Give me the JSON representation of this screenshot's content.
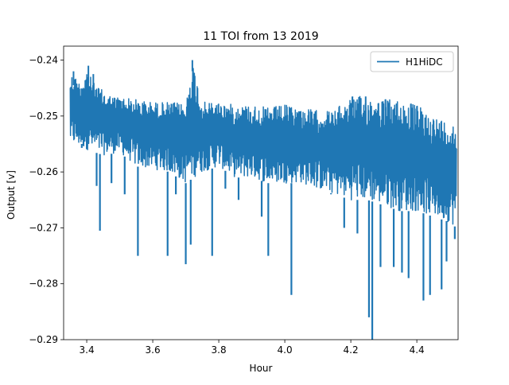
{
  "chart_data": {
    "type": "line",
    "title": "11 TOI from 13 2019",
    "xlabel": "Hour",
    "ylabel": "Output [v]",
    "xlim": [
      3.33,
      4.525
    ],
    "ylim": [
      -0.29,
      -0.2375
    ],
    "xticks": [
      3.4,
      3.6,
      3.8,
      4.0,
      4.2,
      4.4
    ],
    "xtick_labels": [
      "3.4",
      "3.6",
      "3.8",
      "4.0",
      "4.2",
      "4.4"
    ],
    "yticks": [
      -0.24,
      -0.25,
      -0.26,
      -0.27,
      -0.28,
      -0.29
    ],
    "ytick_labels": [
      "−0.24",
      "−0.25",
      "−0.26",
      "−0.27",
      "−0.28",
      "−0.29"
    ],
    "grid": false,
    "legend_position": "top-right",
    "series": [
      {
        "name": "H1HiDC",
        "color": "#1f77b4",
        "x_range": [
          3.35,
          4.52
        ],
        "upper_envelope": {
          "x": [
            3.35,
            3.36,
            3.38,
            3.4,
            3.42,
            3.45,
            3.48,
            3.5,
            3.55,
            3.6,
            3.65,
            3.7,
            3.72,
            3.75,
            3.8,
            3.85,
            3.9,
            3.95,
            4.0,
            4.05,
            4.1,
            4.15,
            4.2,
            4.25,
            4.3,
            4.35,
            4.4,
            4.45,
            4.5,
            4.52
          ],
          "y": [
            -0.2425,
            -0.2425,
            -0.244,
            -0.2415,
            -0.244,
            -0.2455,
            -0.2465,
            -0.2465,
            -0.247,
            -0.2475,
            -0.2475,
            -0.2478,
            -0.24,
            -0.2475,
            -0.2475,
            -0.248,
            -0.248,
            -0.2485,
            -0.248,
            -0.2485,
            -0.249,
            -0.249,
            -0.2465,
            -0.2465,
            -0.247,
            -0.247,
            -0.248,
            -0.25,
            -0.251,
            -0.2515
          ]
        },
        "lower_envelope": {
          "x": [
            3.35,
            3.4,
            3.45,
            3.5,
            3.55,
            3.6,
            3.65,
            3.7,
            3.75,
            3.8,
            3.85,
            3.9,
            3.95,
            4.0,
            4.05,
            4.1,
            4.15,
            4.2,
            4.25,
            4.3,
            4.35,
            4.4,
            4.45,
            4.5,
            4.52
          ],
          "y": [
            -0.255,
            -0.256,
            -0.257,
            -0.2565,
            -0.259,
            -0.2595,
            -0.26,
            -0.262,
            -0.26,
            -0.259,
            -0.261,
            -0.261,
            -0.262,
            -0.262,
            -0.262,
            -0.263,
            -0.264,
            -0.265,
            -0.265,
            -0.266,
            -0.267,
            -0.267,
            -0.268,
            -0.269,
            -0.27
          ]
        },
        "spikes": [
          {
            "x": 3.385,
            "y": -0.255
          },
          {
            "x": 3.43,
            "y": -0.2625
          },
          {
            "x": 3.44,
            "y": -0.2705
          },
          {
            "x": 3.475,
            "y": -0.262
          },
          {
            "x": 3.515,
            "y": -0.264
          },
          {
            "x": 3.555,
            "y": -0.275
          },
          {
            "x": 3.645,
            "y": -0.275
          },
          {
            "x": 3.67,
            "y": -0.264
          },
          {
            "x": 3.7,
            "y": -0.2765
          },
          {
            "x": 3.715,
            "y": -0.273
          },
          {
            "x": 3.78,
            "y": -0.275
          },
          {
            "x": 3.82,
            "y": -0.263
          },
          {
            "x": 3.86,
            "y": -0.265
          },
          {
            "x": 3.93,
            "y": -0.268
          },
          {
            "x": 3.95,
            "y": -0.275
          },
          {
            "x": 4.02,
            "y": -0.282
          },
          {
            "x": 4.14,
            "y": -0.264
          },
          {
            "x": 4.18,
            "y": -0.27
          },
          {
            "x": 4.22,
            "y": -0.271
          },
          {
            "x": 4.255,
            "y": -0.286
          },
          {
            "x": 4.265,
            "y": -0.29
          },
          {
            "x": 4.29,
            "y": -0.277
          },
          {
            "x": 4.33,
            "y": -0.277
          },
          {
            "x": 4.355,
            "y": -0.278
          },
          {
            "x": 4.375,
            "y": -0.279
          },
          {
            "x": 4.42,
            "y": -0.283
          },
          {
            "x": 4.44,
            "y": -0.282
          },
          {
            "x": 4.475,
            "y": -0.281
          },
          {
            "x": 4.49,
            "y": -0.276
          },
          {
            "x": 4.515,
            "y": -0.272
          }
        ],
        "peaks": [
          {
            "x": 3.36,
            "y": -0.242
          },
          {
            "x": 3.405,
            "y": -0.241
          },
          {
            "x": 3.42,
            "y": -0.2425
          },
          {
            "x": 3.72,
            "y": -0.24
          },
          {
            "x": 4.205,
            "y": -0.2465
          },
          {
            "x": 4.245,
            "y": -0.2465
          },
          {
            "x": 4.305,
            "y": -0.247
          }
        ]
      }
    ]
  }
}
